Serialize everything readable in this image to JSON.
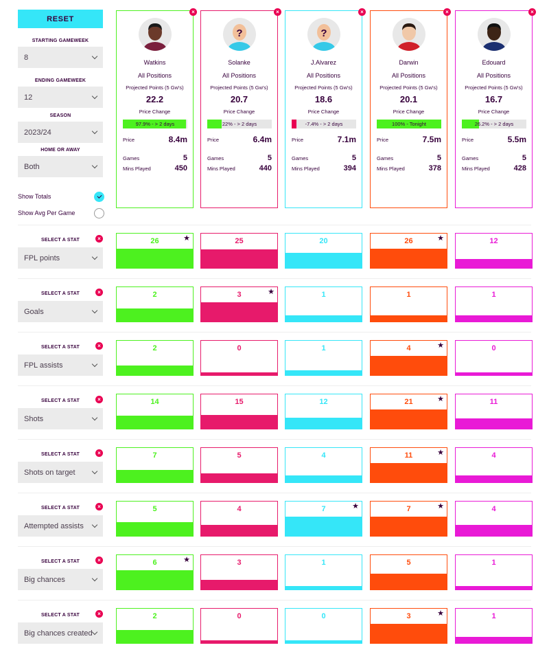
{
  "filters": {
    "reset_label": "RESET",
    "starting_gameweek_label": "STARTING GAMEWEEK",
    "starting_gameweek_value": "8",
    "ending_gameweek_label": "ENDING GAMEWEEK",
    "ending_gameweek_value": "12",
    "season_label": "SEASON",
    "season_value": "2023/24",
    "home_away_label": "HOME OR AWAY",
    "home_away_value": "Both",
    "show_totals_label": "Show Totals",
    "show_totals_selected": true,
    "show_avg_label": "Show Avg Per Game",
    "show_avg_selected": false
  },
  "card_labels": {
    "projected": "Projected Points (5 Gw's)",
    "price_change": "Price Change",
    "price": "Price",
    "games": "Games",
    "mins": "Mins Played"
  },
  "players": [
    {
      "name": "Watkins",
      "position": "All Positions",
      "projected": "22.2",
      "price_change_text": "97.9% - > 2 days",
      "price_change_pct": 97.9,
      "price": "8.4m",
      "games": "5",
      "mins": "450",
      "color": "#4df11f",
      "change_color": "#4df11f",
      "avatar": "player-photo",
      "skin": "#6b3a2a",
      "hair": "#1a1a1a",
      "shirt": "#7a1f3d"
    },
    {
      "name": "Solanke",
      "position": "All Positions",
      "projected": "20.7",
      "price_change_text": "22% - > 2 days",
      "price_change_pct": 22,
      "price": "6.4m",
      "games": "5",
      "mins": "440",
      "color": "#e71a6b",
      "change_color": "#4df11f",
      "avatar": "placeholder-question",
      "skin": "#f2c09a",
      "hair": "",
      "shirt": "#35c9e8"
    },
    {
      "name": "J.Alvarez",
      "position": "All Positions",
      "projected": "18.6",
      "price_change_text": "-7.4% - > 2 days",
      "price_change_pct": 7.4,
      "price": "7.1m",
      "games": "5",
      "mins": "394",
      "color": "#35e6f8",
      "change_color": "#e90052",
      "avatar": "placeholder-question",
      "skin": "#f2c09a",
      "hair": "",
      "shirt": "#35c9e8"
    },
    {
      "name": "Darwin",
      "position": "All Positions",
      "projected": "20.1",
      "price_change_text": "100% - Tonight",
      "price_change_pct": 100,
      "price": "7.5m",
      "games": "5",
      "mins": "378",
      "color": "#ff4c0c",
      "change_color": "#4df11f",
      "avatar": "player-photo",
      "skin": "#f0c8a8",
      "hair": "#2a1a12",
      "shirt": "#d0202a"
    },
    {
      "name": "Edouard",
      "position": "All Positions",
      "projected": "16.7",
      "price_change_text": "26.2% - > 2 days",
      "price_change_pct": 26.2,
      "price": "5.5m",
      "games": "5",
      "mins": "428",
      "color": "#e91ad6",
      "change_color": "#4df11f",
      "avatar": "player-photo",
      "skin": "#3d2416",
      "hair": "#111111",
      "shirt": "#1b2f70"
    }
  ],
  "select_stat_label": "SELECT A STAT",
  "stats": [
    {
      "name": "FPL points",
      "values": [
        "26",
        "25",
        "20",
        "26",
        "12"
      ],
      "best": [
        true,
        false,
        false,
        true,
        false
      ]
    },
    {
      "name": "Goals",
      "values": [
        "2",
        "3",
        "1",
        "1",
        "1"
      ],
      "best": [
        false,
        true,
        false,
        false,
        false
      ]
    },
    {
      "name": "FPL assists",
      "values": [
        "2",
        "0",
        "1",
        "4",
        "0"
      ],
      "best": [
        false,
        false,
        false,
        true,
        false
      ]
    },
    {
      "name": "Shots",
      "values": [
        "14",
        "15",
        "12",
        "21",
        "11"
      ],
      "best": [
        false,
        false,
        false,
        true,
        false
      ]
    },
    {
      "name": "Shots on target",
      "values": [
        "7",
        "5",
        "4",
        "11",
        "4"
      ],
      "best": [
        false,
        false,
        false,
        true,
        false
      ]
    },
    {
      "name": "Attempted assists",
      "values": [
        "5",
        "4",
        "7",
        "7",
        "4"
      ],
      "best": [
        false,
        false,
        true,
        true,
        false
      ]
    },
    {
      "name": "Big chances",
      "values": [
        "6",
        "3",
        "1",
        "5",
        "1"
      ],
      "best": [
        true,
        false,
        false,
        false,
        false
      ]
    },
    {
      "name": "Big chances created",
      "values": [
        "2",
        "0",
        "0",
        "3",
        "1"
      ],
      "best": [
        false,
        false,
        false,
        true,
        false
      ]
    }
  ],
  "icons": {
    "remove": "close-icon",
    "dropdown": "chevron-down-icon",
    "best": "star-icon",
    "check": "check-icon"
  }
}
